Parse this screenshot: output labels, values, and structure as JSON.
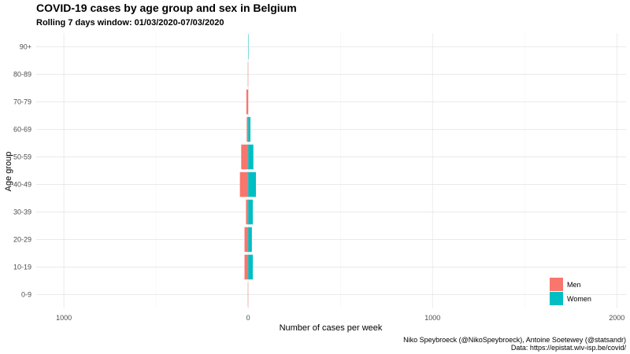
{
  "chart_data": {
    "type": "bar",
    "orientation": "horizontal-diverging",
    "title": "COVID-19 cases by age group and sex in Belgium",
    "subtitle": "Rolling 7 days window: 01/03/2020-07/03/2020",
    "xlabel": "Number of cases per week",
    "ylabel": "Age group",
    "categories": [
      "0-9",
      "10-19",
      "20-29",
      "30-39",
      "40-49",
      "50-59",
      "60-69",
      "70-79",
      "80-89",
      "90+"
    ],
    "series": [
      {
        "name": "Men",
        "color": "#F8766D",
        "values": [
          2,
          20,
          20,
          12,
          45,
          38,
          8,
          10,
          2,
          0
        ]
      },
      {
        "name": "Women",
        "color": "#00BFC4",
        "values": [
          0,
          25,
          20,
          25,
          42,
          28,
          12,
          0,
          0,
          2
        ]
      }
    ],
    "xlim": [
      -1150,
      2050
    ],
    "xticks": [
      -1000,
      0,
      1000,
      2000
    ],
    "xtick_labels": [
      "1000",
      "0",
      "1000",
      "2000"
    ],
    "grid": true,
    "legend_position": "bottom-right",
    "caption_lines": [
      "Niko Speybroeck (@NikoSpeybroeck), Antoine Soetewey (@statsandr)",
      "Data: https://epistat.wiv-isp.be/covid/"
    ]
  }
}
